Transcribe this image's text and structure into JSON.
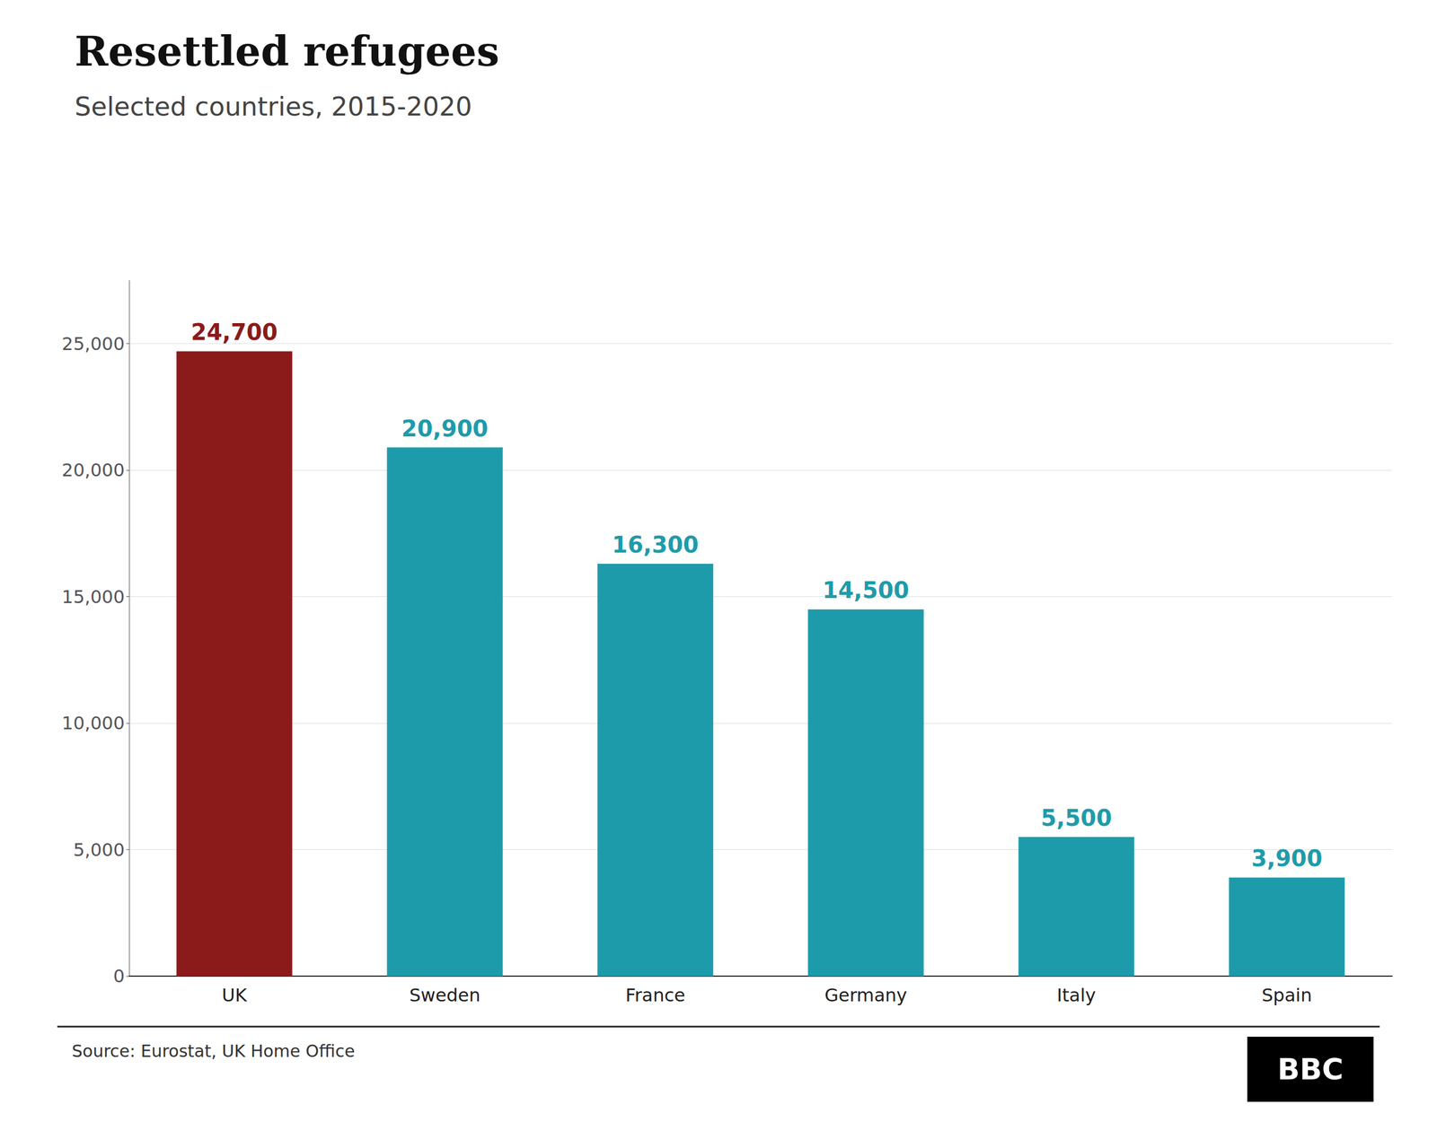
{
  "chart_data": {
    "type": "bar",
    "title": "Resettled refugees",
    "subtitle": "Selected countries, 2015-2020",
    "source": "Source: Eurostat, UK Home Office",
    "annotations": [
      "BBC"
    ],
    "categories": [
      "UK",
      "Sweden",
      "France",
      "Germany",
      "Italy",
      "Spain"
    ],
    "values": [
      24700,
      20900,
      16300,
      14500,
      5500,
      3900
    ],
    "value_labels": [
      "24,700",
      "20,900",
      "16,300",
      "14,500",
      "5,500",
      "3,900"
    ],
    "colors": [
      "#8B1A1A",
      "#1E9BAA",
      "#1E9BAA",
      "#1E9BAA",
      "#1E9BAA",
      "#1E9BAA"
    ],
    "data_labels": true,
    "ylim": [
      0,
      27500
    ],
    "yticks": [
      0,
      {
        "value": 5000,
        "label": "5,000"
      },
      {
        "value": 10000,
        "label": "10,000"
      },
      {
        "value": 15000,
        "label": "15,000"
      },
      {
        "value": 20000,
        "label": "20,000"
      },
      {
        "value": 25000,
        "label": "25,000"
      }
    ],
    "grid": true
  }
}
